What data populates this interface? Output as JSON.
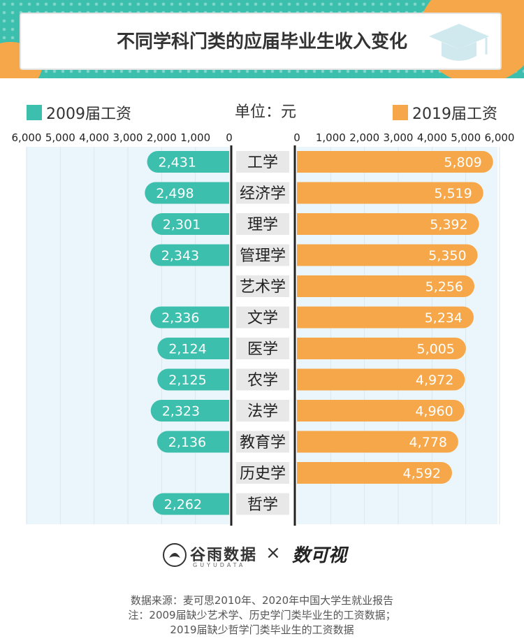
{
  "title": "不同学科门类的应届毕业生收入变化",
  "legend": {
    "left": "2009届工资",
    "right": "2019届工资"
  },
  "unit_label": "单位：元",
  "colors": {
    "teal": "#3dbfae",
    "orange": "#f6a74a",
    "bg_panel": "#eaf6fb"
  },
  "chart_data": {
    "type": "bar",
    "categories": [
      "工学",
      "经济学",
      "理学",
      "管理学",
      "艺术学",
      "文学",
      "医学",
      "农学",
      "法学",
      "教育学",
      "历史学",
      "哲学"
    ],
    "series": [
      {
        "name": "2009届工资",
        "values": [
          2431,
          2498,
          2301,
          2343,
          null,
          2336,
          2124,
          2125,
          2323,
          2136,
          null,
          2262
        ],
        "labels": [
          "2,431",
          "2,498",
          "2,301",
          "2,343",
          "",
          "2,336",
          "2,124",
          "2,125",
          "2,323",
          "2,136",
          "",
          "2,262"
        ]
      },
      {
        "name": "2019届工资",
        "values": [
          5809,
          5519,
          5392,
          5350,
          5256,
          5234,
          5005,
          4972,
          4960,
          4778,
          4592,
          null
        ],
        "labels": [
          "5,809",
          "5,519",
          "5,392",
          "5,350",
          "5,256",
          "5,234",
          "5,005",
          "4,972",
          "4,960",
          "4,778",
          "4,592",
          ""
        ]
      }
    ],
    "left_ticks": [
      "6,000",
      "5,000",
      "4,000",
      "3,000",
      "2,000",
      "1,000",
      "0"
    ],
    "right_ticks": [
      "0",
      "1,000",
      "2,000",
      "3,000",
      "4,000",
      "5,000",
      "6,000"
    ],
    "xlim": [
      0,
      6000
    ]
  },
  "footer": {
    "brand1": "谷雨数据",
    "brand1_sub": "GUYUDATA",
    "times": "×",
    "brand2": "数可视",
    "source_lines": [
      "数据来源：麦可思2010年、2020年中国大学生就业报告",
      "注：2009届缺少艺术学、历史学门类毕业生的工资数据；",
      "2019届缺少哲学门类毕业生的工资数据"
    ]
  }
}
